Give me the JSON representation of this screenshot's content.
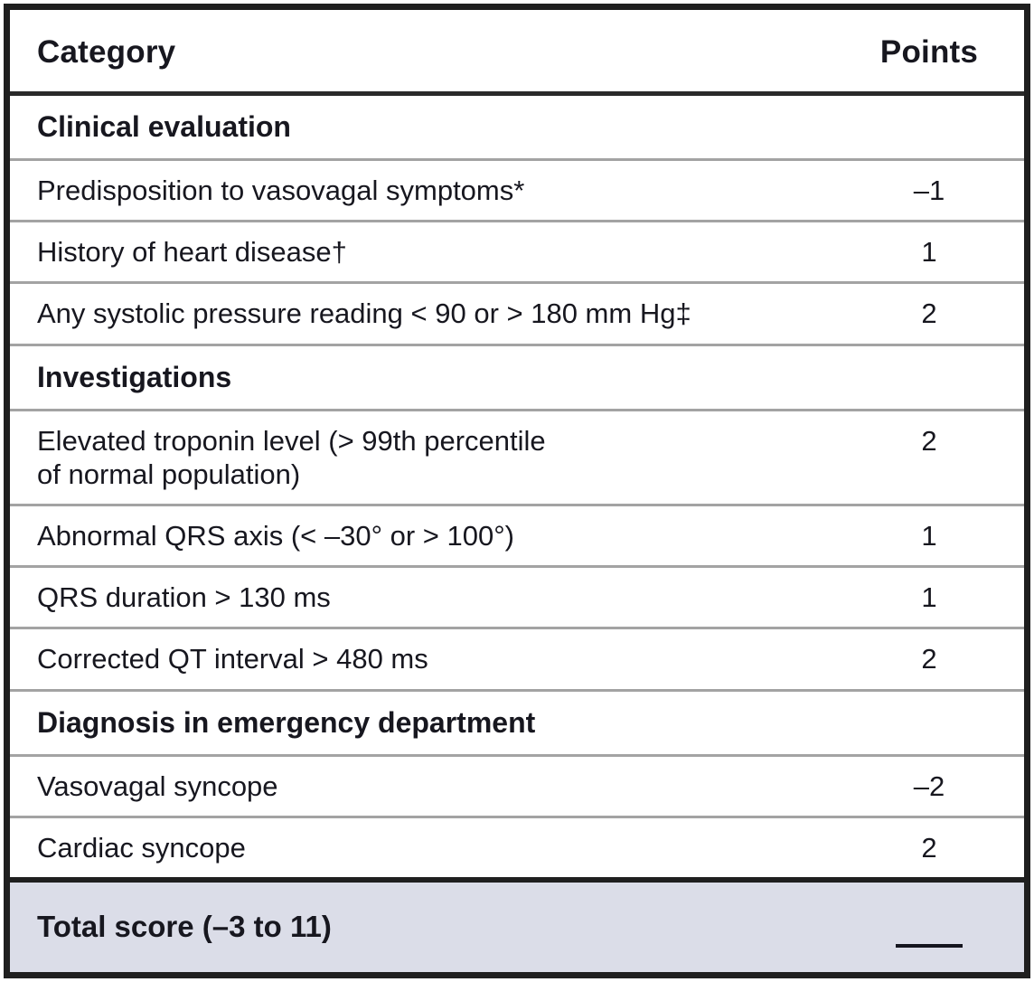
{
  "table": {
    "header": {
      "category": "Category",
      "points": "Points"
    },
    "sections": [
      {
        "title": "Clinical evaluation",
        "rows": [
          {
            "label": "Predisposition to vasovagal symptoms*",
            "points": "–1"
          },
          {
            "label": "History of heart disease†",
            "points": "1"
          },
          {
            "label": "Any systolic pressure reading < 90 or > 180 mm Hg‡",
            "points": "2"
          }
        ]
      },
      {
        "title": "Investigations",
        "rows": [
          {
            "label": "Elevated troponin level (> 99th percentile\nof normal population)",
            "points": "2"
          },
          {
            "label": "Abnormal QRS axis (< –30° or > 100°)",
            "points": "1"
          },
          {
            "label": "QRS duration > 130 ms",
            "points": "1"
          },
          {
            "label": "Corrected QT interval > 480 ms",
            "points": "2"
          }
        ]
      },
      {
        "title": "Diagnosis in emergency department",
        "rows": [
          {
            "label": "Vasovagal syncope",
            "points": "–2"
          },
          {
            "label": "Cardiac syncope",
            "points": "2"
          }
        ]
      }
    ],
    "total": {
      "label": "Total score (–3 to 11)"
    }
  },
  "colors": {
    "text": "#17171f",
    "frame_border": "#1f1f1f",
    "row_divider": "#a3a3a3",
    "header_separator": "#2a2a2a",
    "total_row_background": "#dbdde8"
  }
}
